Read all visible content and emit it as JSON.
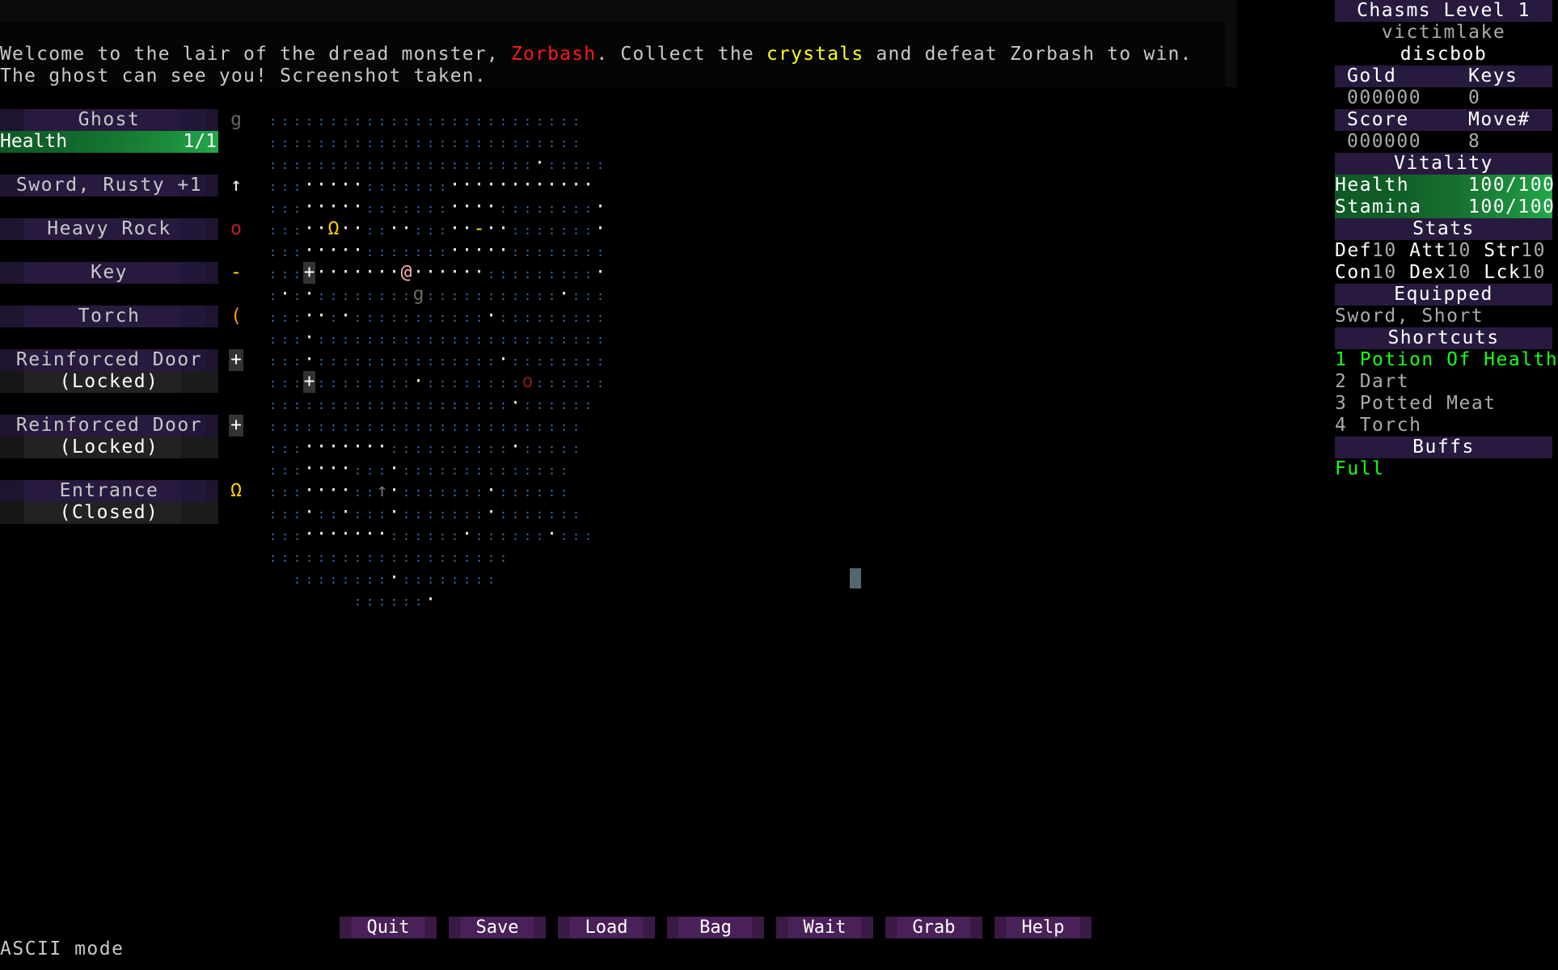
{
  "messages": {
    "line1": {
      "pre": "Welcome to the lair of the dread monster, ",
      "monster": "Zorbash",
      "mid": ". Collect the ",
      "item": "crystals",
      "post": " and defeat Zorbash to win."
    },
    "line2": "The ghost can see you! Screenshot taken."
  },
  "left_panel": {
    "target": {
      "name": "Ghost",
      "icon": "g",
      "health_label": "Health",
      "health_value": "1/1",
      "health_fraction": 1.0
    },
    "items": [
      {
        "name": "Sword, Rusty +1",
        "icon": "↑"
      },
      {
        "name": "Heavy Rock",
        "icon": "o"
      },
      {
        "name": "Key",
        "icon": "-"
      },
      {
        "name": "Torch",
        "icon": "("
      },
      {
        "name": "Reinforced Door",
        "status": "(Locked)",
        "icon": "+"
      },
      {
        "name": "Reinforced Door",
        "status": "(Locked)",
        "icon": "+"
      },
      {
        "name": "Entrance",
        "status": "(Closed)",
        "icon": "Ω"
      }
    ]
  },
  "map": {
    "rows": [
      "::::::::::::::::::::::::::",
      "::::::::::::::::::::::::::",
      "::::::::::::::::::::::.:::::",
      ":::.....:::::::............",
      ":::.....:::::::....::::::::.",
      ":::..Ω..::..:::..-..:::::::.",
      ":::.....:::::::.....::::::::",
      ":::+.......@......:::::::::.",
      ":.:.::::::::g:::::::::::.:::",
      ":::..:.:::::::::::.:::::::::",
      ":::.::::::::::::::::::::::::",
      ":::.:::::::::::::::.::::::::",
      ":::+::::::::.::::::::o::::::",
      "::::::::::::::::::::.::::::",
      "::::::::::::::::::::::::::",
      ":::.......::::::::::.:::::",
      ":::....:::.::::::::::::::",
      ":::....::↑.:::::::.::::::",
      ":::.::.:::.:::::::.:::::::",
      ":::.......::::::.::::::.:::",
      "::::::::::::::::::::",
      "  ::::::::.::::::::",
      "       ::::::."
    ],
    "glyph_colors": {
      ":": "#3b74b8",
      ".": "#e8e8e8",
      "@": "#ffb0b0",
      "g": "#6a6a6a",
      "Ω": "#ffcc00",
      "-": "#ffee00",
      "+": "#ffffff",
      "o": "#8a1a1a",
      "↑": "#777777"
    }
  },
  "right_panel": {
    "level": "Chasms Level 1",
    "player_name": "victimlake",
    "player_class": "discbob",
    "gold_label": "Gold",
    "keys_label": "Keys",
    "gold": "000000",
    "keys": "0",
    "score_label": "Score",
    "move_label": "Move#",
    "score": "000000",
    "move": "8",
    "vitality_label": "Vitality",
    "health_label": "Health",
    "health": "100/100",
    "stamina_label": "Stamina",
    "stamina": "100/100",
    "stats_label": "Stats",
    "stats": [
      {
        "k": "Def",
        "v": "10"
      },
      {
        "k": "Att",
        "v": "10"
      },
      {
        "k": "Str",
        "v": "10"
      },
      {
        "k": "Con",
        "v": "10"
      },
      {
        "k": "Dex",
        "v": "10"
      },
      {
        "k": "Lck",
        "v": "10"
      }
    ],
    "equipped_label": "Equipped",
    "equipped": "Sword, Short",
    "shortcuts_label": "Shortcuts",
    "shortcuts": [
      "1 Potion Of Health",
      "2 Dart",
      "3 Potted Meat",
      "4 Torch"
    ],
    "buffs_label": "Buffs",
    "buffs": "Full"
  },
  "buttons": [
    "Quit",
    "Save",
    "Load",
    "Bag",
    "Wait",
    "Grab",
    "Help"
  ],
  "mode": "ASCII mode",
  "colors": {
    "header": "#281a3e",
    "health_bar": "#22a849",
    "highlight": "#1aff1a",
    "monster": "#ff1a1a",
    "item": "#ffff1a"
  }
}
